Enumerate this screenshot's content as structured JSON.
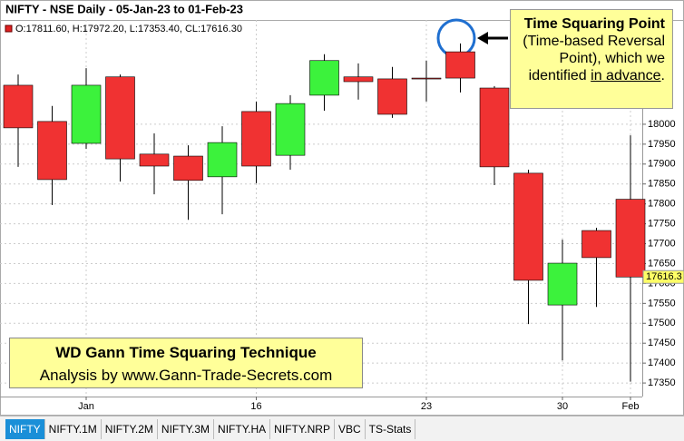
{
  "chart_data": {
    "type": "candlestick",
    "title": "NIFTY - NSE Daily - 05-Jan-23 to 01-Feb-23",
    "ohlc_readout": "O:17811.60, H:17972.20, L:17353.40, CL:17616.30",
    "categories": [
      null,
      null,
      "Jan",
      null,
      null,
      null,
      null,
      "16",
      null,
      null,
      null,
      null,
      "23",
      null,
      null,
      null,
      "30",
      null,
      "Feb"
    ],
    "open": [
      18098,
      18007,
      17952,
      18119,
      17925,
      17920,
      17868,
      18032,
      17922,
      18073,
      18119,
      18114,
      18116,
      18182,
      18091,
      17877,
      17546,
      17733,
      17811.6
    ],
    "high": [
      18125,
      18046,
      18141,
      18125,
      17977,
      17947,
      17995,
      18057,
      18073,
      18176,
      18153,
      18144,
      18160,
      18203,
      18096,
      17886,
      17710,
      17740,
      17972.2
    ],
    "low": [
      17893,
      17797,
      17938,
      17856,
      17824,
      17760,
      17774,
      17852,
      17886,
      18034,
      18062,
      18016,
      18057,
      18080,
      17847,
      17498,
      17407,
      17541,
      17353.4
    ],
    "close": [
      17991,
      17861,
      18098,
      17913,
      17895,
      17859,
      17954,
      17895,
      18052,
      18160,
      18107,
      18025,
      18114,
      18116,
      17893,
      17608,
      17651,
      17665,
      17616.3
    ],
    "up_color": "#3cf23c",
    "down_color": "#f03232",
    "ylim": [
      17316,
      18262
    ],
    "yticks": [
      17350,
      17400,
      17450,
      17500,
      17550,
      17600,
      17650,
      17700,
      17750,
      17800,
      17850,
      17900,
      17950,
      18000
    ],
    "last_price": 17616.3,
    "grid": true,
    "annotation": {
      "bold": "Time Squaring Point",
      "text": "(Time-based Reversal Point), which we identified",
      "underline": "in advance",
      "end": "."
    },
    "banner": [
      "WD Gann Time Squaring Technique",
      "Analysis by www.Gann-Trade-Secrets.com"
    ]
  },
  "tabs": [
    "NIFTY",
    "NIFTY.1M",
    "NIFTY.2M",
    "NIFTY.3M",
    "NIFTY.HA",
    "NIFTY.NRP",
    "VBC",
    "TS-Stats"
  ]
}
